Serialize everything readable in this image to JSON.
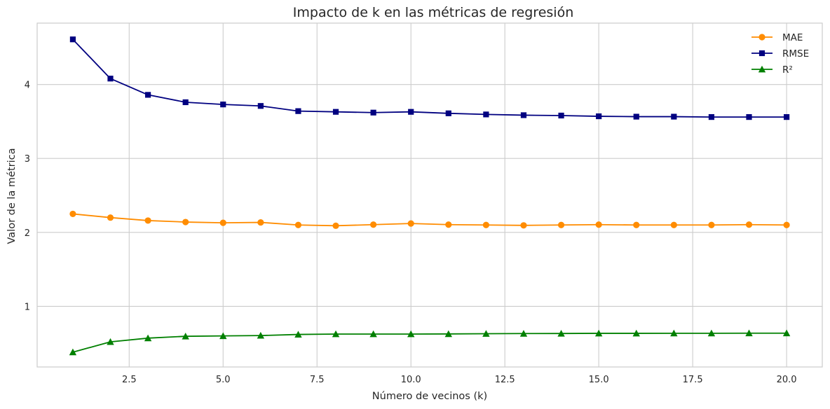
{
  "chart_data": {
    "type": "line",
    "title": "Impacto de k en las métricas de regresión",
    "xlabel": "Número de vecinos (k)",
    "ylabel": "Valor de la métrica",
    "xlim": [
      0.05,
      20.95
    ],
    "ylim": [
      0.18,
      4.83
    ],
    "x_ticks": [
      2.5,
      5.0,
      7.5,
      10.0,
      12.5,
      15.0,
      17.5,
      20.0
    ],
    "x_tick_labels": [
      "2.5",
      "5.0",
      "7.5",
      "10.0",
      "12.5",
      "15.0",
      "17.5",
      "20.0"
    ],
    "y_ticks": [
      1,
      2,
      3,
      4
    ],
    "y_tick_labels": [
      "1",
      "2",
      "3",
      "4"
    ],
    "grid": true,
    "legend_position": "top-right",
    "x": [
      1,
      2,
      3,
      4,
      5,
      6,
      7,
      8,
      9,
      10,
      11,
      12,
      13,
      14,
      15,
      16,
      17,
      18,
      19,
      20
    ],
    "series": [
      {
        "name": "MAE",
        "color": "#ff8c00",
        "marker": "circle",
        "values": [
          2.25,
          2.2,
          2.16,
          2.14,
          2.13,
          2.135,
          2.1,
          2.09,
          2.105,
          2.12,
          2.105,
          2.1,
          2.095,
          2.1,
          2.105,
          2.1,
          2.1,
          2.1,
          2.105,
          2.1
        ]
      },
      {
        "name": "RMSE",
        "color": "#000080",
        "marker": "square",
        "values": [
          4.61,
          4.08,
          3.86,
          3.76,
          3.73,
          3.71,
          3.64,
          3.63,
          3.62,
          3.63,
          3.61,
          3.595,
          3.585,
          3.58,
          3.57,
          3.565,
          3.565,
          3.56,
          3.56,
          3.56
        ]
      },
      {
        "name": "R²",
        "color": "#008000",
        "marker": "triangle",
        "values": [
          0.38,
          0.52,
          0.57,
          0.595,
          0.6,
          0.605,
          0.62,
          0.625,
          0.625,
          0.625,
          0.627,
          0.63,
          0.632,
          0.633,
          0.635,
          0.635,
          0.636,
          0.636,
          0.637,
          0.637
        ]
      }
    ]
  }
}
